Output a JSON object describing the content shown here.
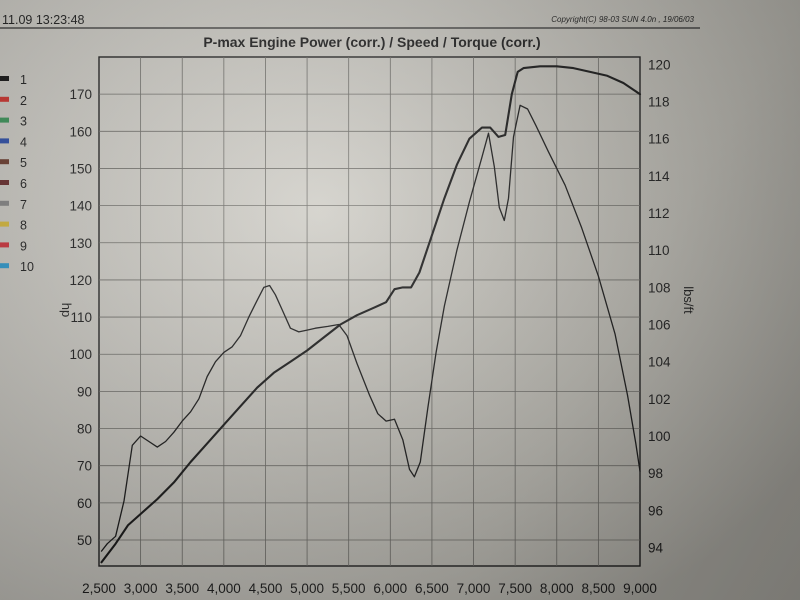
{
  "header": {
    "timestamp": "11.09 13:23:48",
    "copyright": "Copyright(C) 98-03 SUN 4.0n , 19/06/03"
  },
  "legend": {
    "items": [
      {
        "label": "1",
        "color": "#111111"
      },
      {
        "label": "2",
        "color": "#d8312b"
      },
      {
        "label": "3",
        "color": "#3a9a5a"
      },
      {
        "label": "4",
        "color": "#2b4fb0"
      },
      {
        "label": "5",
        "color": "#6e3b2c"
      },
      {
        "label": "6",
        "color": "#6a2a2a"
      },
      {
        "label": "7",
        "color": "#8a8a8a"
      },
      {
        "label": "8",
        "color": "#e2c23a"
      },
      {
        "label": "9",
        "color": "#d8313b"
      },
      {
        "label": "10",
        "color": "#2ba0d8"
      }
    ]
  },
  "chart_data": {
    "type": "line",
    "title": "P-max Engine Power  (corr.) / Speed / Torque (corr.)",
    "xlabel": "",
    "ylabel": "hp",
    "ylabel_right": "lbs/ft",
    "xlim": [
      2500,
      9000
    ],
    "ylim": [
      43,
      180
    ],
    "ylim_right": [
      93,
      120.4
    ],
    "x_ticks": [
      2500,
      3000,
      3500,
      4000,
      4500,
      5000,
      5500,
      6000,
      6500,
      7000,
      7500,
      8000,
      8500,
      9000
    ],
    "x_tick_labels": [
      "2,500",
      "3,000",
      "3,500",
      "4,000",
      "4,500",
      "5,000",
      "5,500",
      "6,000",
      "6,500",
      "7,000",
      "7,500",
      "8,000",
      "8,500",
      "9,000"
    ],
    "y_ticks": [
      50,
      60,
      70,
      80,
      90,
      100,
      110,
      120,
      130,
      140,
      150,
      160,
      170
    ],
    "y_right_ticks": [
      94,
      96,
      98,
      100,
      102,
      104,
      106,
      108,
      110,
      112,
      114,
      116,
      118,
      120
    ],
    "grid": true,
    "series": [
      {
        "axis": "left",
        "points": [
          [
            2530,
            44
          ],
          [
            2700,
            49
          ],
          [
            2850,
            54
          ],
          [
            3000,
            57
          ],
          [
            3200,
            61
          ],
          [
            3400,
            65.5
          ],
          [
            3600,
            71
          ],
          [
            3800,
            76
          ],
          [
            4000,
            81
          ],
          [
            4200,
            86
          ],
          [
            4400,
            91
          ],
          [
            4600,
            95
          ],
          [
            4800,
            98
          ],
          [
            5000,
            101
          ],
          [
            5200,
            104.5
          ],
          [
            5400,
            108
          ],
          [
            5600,
            110.5
          ],
          [
            5800,
            112.5
          ],
          [
            5950,
            114
          ],
          [
            6050,
            117.5
          ],
          [
            6150,
            118
          ],
          [
            6250,
            118
          ],
          [
            6350,
            122
          ],
          [
            6500,
            132
          ],
          [
            6650,
            142
          ],
          [
            6800,
            151
          ],
          [
            6950,
            158
          ],
          [
            7100,
            161
          ],
          [
            7200,
            161
          ],
          [
            7300,
            158.5
          ],
          [
            7380,
            159
          ],
          [
            7460,
            170
          ],
          [
            7530,
            176
          ],
          [
            7600,
            177
          ],
          [
            7800,
            177.5
          ],
          [
            8000,
            177.5
          ],
          [
            8200,
            177
          ],
          [
            8400,
            176
          ],
          [
            8600,
            175
          ],
          [
            8800,
            173
          ],
          [
            9000,
            170
          ]
        ]
      },
      {
        "axis": "right",
        "points": [
          [
            2530,
            93.8
          ],
          [
            2600,
            94.2
          ],
          [
            2700,
            94.6
          ],
          [
            2800,
            96.5
          ],
          [
            2900,
            99.5
          ],
          [
            3000,
            100
          ],
          [
            3100,
            99.7
          ],
          [
            3200,
            99.4
          ],
          [
            3300,
            99.7
          ],
          [
            3400,
            100.2
          ],
          [
            3500,
            100.8
          ],
          [
            3600,
            101.3
          ],
          [
            3700,
            102
          ],
          [
            3800,
            103.2
          ],
          [
            3900,
            104
          ],
          [
            4000,
            104.5
          ],
          [
            4100,
            104.8
          ],
          [
            4200,
            105.4
          ],
          [
            4300,
            106.4
          ],
          [
            4400,
            107.3
          ],
          [
            4480,
            108
          ],
          [
            4550,
            108.1
          ],
          [
            4620,
            107.6
          ],
          [
            4700,
            106.8
          ],
          [
            4800,
            105.8
          ],
          [
            4900,
            105.6
          ],
          [
            5000,
            105.7
          ],
          [
            5100,
            105.8
          ],
          [
            5250,
            105.9
          ],
          [
            5380,
            106
          ],
          [
            5480,
            105.4
          ],
          [
            5600,
            103.9
          ],
          [
            5750,
            102.2
          ],
          [
            5850,
            101.2
          ],
          [
            5950,
            100.8
          ],
          [
            6050,
            100.9
          ],
          [
            6150,
            99.8
          ],
          [
            6230,
            98.2
          ],
          [
            6290,
            97.8
          ],
          [
            6360,
            98.6
          ],
          [
            6450,
            101.5
          ],
          [
            6550,
            104.5
          ],
          [
            6650,
            107
          ],
          [
            6800,
            110
          ],
          [
            6950,
            112.6
          ],
          [
            7100,
            115
          ],
          [
            7180,
            116.3
          ],
          [
            7250,
            114.5
          ],
          [
            7310,
            112.3
          ],
          [
            7370,
            111.6
          ],
          [
            7420,
            112.8
          ],
          [
            7480,
            116.1
          ],
          [
            7560,
            117.8
          ],
          [
            7650,
            117.6
          ],
          [
            7750,
            116.7
          ],
          [
            7900,
            115.3
          ],
          [
            8100,
            113.5
          ],
          [
            8300,
            111.2
          ],
          [
            8500,
            108.6
          ],
          [
            8700,
            105.5
          ],
          [
            8850,
            102.2
          ],
          [
            8950,
            99.6
          ],
          [
            9000,
            98.1
          ]
        ]
      }
    ]
  }
}
